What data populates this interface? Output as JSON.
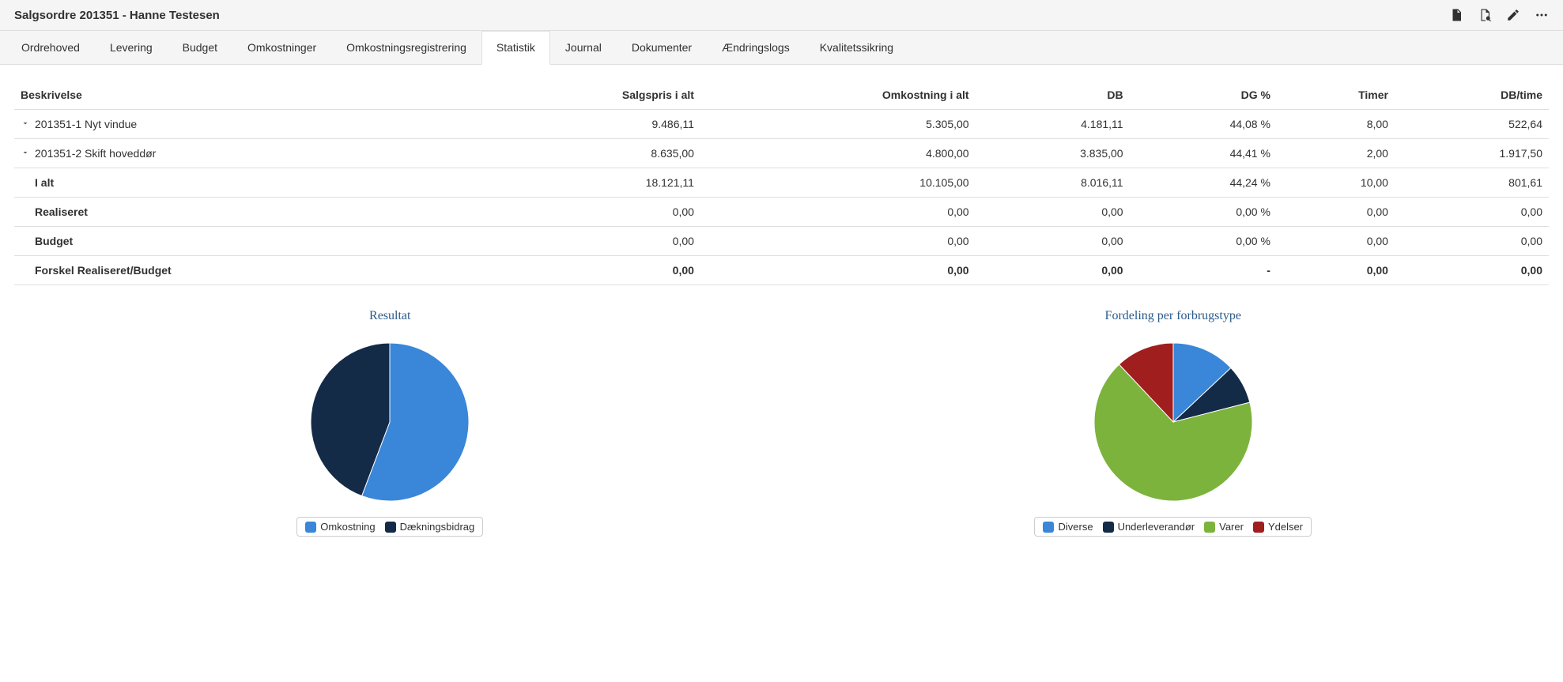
{
  "header": {
    "title": "Salgsordre 201351 - Hanne Testesen"
  },
  "tabs": [
    {
      "label": "Ordrehoved",
      "active": false
    },
    {
      "label": "Levering",
      "active": false
    },
    {
      "label": "Budget",
      "active": false
    },
    {
      "label": "Omkostninger",
      "active": false
    },
    {
      "label": "Omkostningsregistrering",
      "active": false
    },
    {
      "label": "Statistik",
      "active": true
    },
    {
      "label": "Journal",
      "active": false
    },
    {
      "label": "Dokumenter",
      "active": false
    },
    {
      "label": "Ændringslogs",
      "active": false
    },
    {
      "label": "Kvalitetssikring",
      "active": false
    }
  ],
  "table": {
    "columns": [
      "Beskrivelse",
      "Salgspris i alt",
      "Omkostning i alt",
      "DB",
      "DG %",
      "Timer",
      "DB/time"
    ],
    "rows": [
      {
        "expandable": true,
        "bold": false,
        "cells": [
          "201351-1 Nyt vindue",
          "9.486,11",
          "5.305,00",
          "4.181,11",
          "44,08 %",
          "8,00",
          "522,64"
        ]
      },
      {
        "expandable": true,
        "bold": false,
        "cells": [
          "201351-2 Skift hoveddør",
          "8.635,00",
          "4.800,00",
          "3.835,00",
          "44,41 %",
          "2,00",
          "1.917,50"
        ]
      },
      {
        "expandable": false,
        "bold": true,
        "boldFirstOnly": true,
        "cells": [
          "I alt",
          "18.121,11",
          "10.105,00",
          "8.016,11",
          "44,24 %",
          "10,00",
          "801,61"
        ]
      },
      {
        "expandable": false,
        "bold": true,
        "boldFirstOnly": true,
        "cells": [
          "Realiseret",
          "0,00",
          "0,00",
          "0,00",
          "0,00 %",
          "0,00",
          "0,00"
        ]
      },
      {
        "expandable": false,
        "bold": true,
        "boldFirstOnly": true,
        "cells": [
          "Budget",
          "0,00",
          "0,00",
          "0,00",
          "0,00 %",
          "0,00",
          "0,00"
        ]
      },
      {
        "expandable": false,
        "bold": true,
        "boldFirstOnly": false,
        "cells": [
          "Forskel Realiseret/Budget",
          "0,00",
          "0,00",
          "0,00",
          "-",
          "0,00",
          "0,00"
        ]
      }
    ]
  },
  "charts": {
    "resultat": {
      "title": "Resultat",
      "type": "pie",
      "radius": 100,
      "slices": [
        {
          "label": "Omkostning",
          "value": 55.76,
          "color": "#3a86d8"
        },
        {
          "label": "Dækningsbidrag",
          "value": 44.24,
          "color": "#142b47"
        }
      ]
    },
    "fordeling": {
      "title": "Fordeling per forbrugstype",
      "type": "pie",
      "radius": 100,
      "slices": [
        {
          "label": "Diverse",
          "value": 13,
          "color": "#3a86d8"
        },
        {
          "label": "Underleverandør",
          "value": 8,
          "color": "#142b47"
        },
        {
          "label": "Varer",
          "value": 67,
          "color": "#7cb33c"
        },
        {
          "label": "Ydelser",
          "value": 12,
          "color": "#a01e1e"
        }
      ]
    }
  },
  "colors": {
    "chart_title": "#2a5a8a",
    "border": "#e1dfdd",
    "background": "#ffffff",
    "header_bg": "#f5f5f5"
  }
}
